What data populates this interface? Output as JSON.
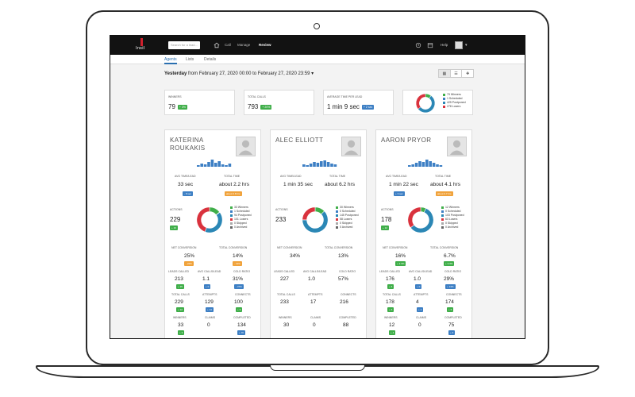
{
  "topbar": {
    "logo": "Insil",
    "search_placeholder": "Search for a lead...",
    "nav": [
      "Call",
      "Manage",
      "Review"
    ],
    "active_nav": "Review",
    "help": "Help"
  },
  "tabs": [
    "Agents",
    "Lists",
    "Details"
  ],
  "active_tab": "Agents",
  "date_range": {
    "bold": "Yesterday",
    "rest": "from February 27, 2020 00:00 to February 27, 2020 23:59"
  },
  "summary": [
    {
      "label": "WINNERS",
      "value": "79",
      "pill": "+ 3%",
      "pill_color": "green"
    },
    {
      "label": "TOTAL CALLS",
      "value": "793",
      "pill": "+ 20%",
      "pill_color": "green"
    },
    {
      "label": "AVERAGE TIME PER LEAD",
      "value": "1 min 9 sec",
      "pill": "+ 2 sec",
      "pill_color": "blue"
    }
  ],
  "summary_legend": [
    "79 Winners",
    "1 Scheduled",
    "425 Postponed",
    "278 Losers"
  ],
  "colors": {
    "winners": "#3fae49",
    "scheduled": "#3d7fc4",
    "postponed": "#2b87b5",
    "losers": "#d9323d",
    "skipped": "#aaaaaa",
    "archived": "#666666"
  },
  "agents": [
    {
      "name_line1": "KATERINA",
      "name_line2": "ROUKAKIS",
      "avg_time_label": "AVG TIME/LEAD",
      "avg_time": "33 sec",
      "avg_time_pill": "- 8 sec",
      "total_time_label": "TOTAL TIME",
      "total_time": "about 2.2 hrs",
      "total_time_pill": "about 0.8 hrs",
      "actions_label": "ACTIONS",
      "actions": "229",
      "actions_pill": "+ 10",
      "legend": [
        "33 Winners",
        "1 Scheduled",
        "94 Postponed",
        "101 Losers",
        "0 Skipped",
        "0 Archived"
      ],
      "donut": {
        "winners": 33,
        "scheduled": 1,
        "postponed": 94,
        "losers": 101
      },
      "net_conv": "25%",
      "net_conv_pill": "- 22%",
      "total_conv": "14%",
      "total_conv_pill": "- 13%",
      "leads_called": "213",
      "leads_called_pill": "+ 35",
      "avg_calls": "1.1",
      "avg_calls_pill": "+ 0",
      "cold_ratio": "31%",
      "cold_ratio_pill": "- 37%",
      "total_calls": "229",
      "total_calls_pill": "+ 22",
      "attempts": "129",
      "attempts_pill": "+ 14",
      "connects": "100",
      "connects_pill": "+ 3",
      "winners": "33",
      "winners_pill": "+ 3",
      "claims": "0",
      "completed": "134",
      "completed_pill": "+ 76"
    },
    {
      "name_line1": "ALEC ELLIOTT",
      "name_line2": "",
      "avg_time_label": "AVG TIME/LEAD",
      "avg_time": "1 min 35 sec",
      "avg_time_pill": "",
      "total_time_label": "TOTAL TIME",
      "total_time": "about 6.2 hrs",
      "total_time_pill": "",
      "actions_label": "ACTIONS",
      "actions": "233",
      "actions_pill": "",
      "legend": [
        "30 Winners",
        "0 Scheduled",
        "145 Postponed",
        "58 Losers",
        "0 Skipped",
        "0 Archived"
      ],
      "donut": {
        "winners": 30,
        "scheduled": 0,
        "postponed": 145,
        "losers": 58
      },
      "net_conv": "34%",
      "net_conv_pill": "",
      "total_conv": "13%",
      "total_conv_pill": "",
      "leads_called": "227",
      "leads_called_pill": "",
      "avg_calls": "1.0",
      "avg_calls_pill": "",
      "cold_ratio": "57%",
      "cold_ratio_pill": "",
      "total_calls": "233",
      "total_calls_pill": "",
      "attempts": "17",
      "attempts_pill": "",
      "connects": "216",
      "connects_pill": "",
      "winners": "30",
      "winners_pill": "",
      "claims": "0",
      "completed": "88",
      "completed_pill": ""
    },
    {
      "name_line1": "AARON PRYOR",
      "name_line2": "",
      "avg_time_label": "AVG TIME/LEAD",
      "avg_time": "1 min 22 sec",
      "avg_time_pill": "+ 3 sec",
      "total_time_label": "TOTAL TIME",
      "total_time": "about 4.1 hrs",
      "total_time_pill": "about 0.7 hrs",
      "actions_label": "ACTIONS",
      "actions": "178",
      "actions_pill": "+ 12",
      "legend": [
        "12 Winners",
        "0 Scheduled",
        "103 Postponed",
        "63 Losers",
        "0 Skipped",
        "0 Archived"
      ],
      "donut": {
        "winners": 12,
        "scheduled": 0,
        "postponed": 103,
        "losers": 63
      },
      "net_conv": "16%",
      "net_conv_pill": "+ 2.3%",
      "total_conv": "6.7%",
      "total_conv_pill": "+ 3.3%",
      "leads_called": "176",
      "leads_called_pill": "+ 6",
      "avg_calls": "1.0",
      "avg_calls_pill": "+ 0",
      "cold_ratio": "29%",
      "cold_ratio_pill": "+ 13%",
      "total_calls": "178",
      "total_calls_pill": "+ 6",
      "attempts": "4",
      "attempts_pill": "+ 1",
      "connects": "174",
      "connects_pill": "+ 5",
      "winners": "12",
      "winners_pill": "+ 4",
      "claims": "0",
      "completed": "75",
      "completed_pill": "+ 6"
    }
  ],
  "labels": {
    "net_conv": "NET CONVERSION",
    "total_conv": "TOTAL CONVERSION",
    "leads_called": "LEADS CALLED",
    "avg_calls": "AVG CALLS/LEAD",
    "cold_ratio": "COLD RATIO",
    "total_calls": "TOTAL CALLS",
    "attempts": "ATTEMPTS",
    "connects": "CONNECTS",
    "winners": "WINNERS",
    "claims": "CLAIMS",
    "completed": "COMPLETED"
  }
}
